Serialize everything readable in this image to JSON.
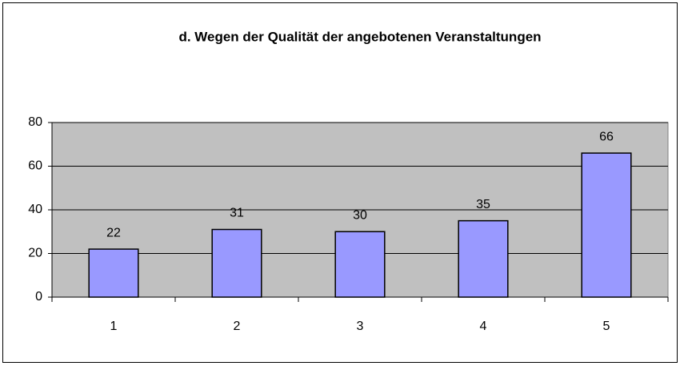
{
  "chart_data": {
    "type": "bar",
    "title": "d. Wegen der Qualität der angebotenen Veranstaltungen",
    "categories": [
      "1",
      "2",
      "3",
      "4",
      "5"
    ],
    "values": [
      22,
      31,
      30,
      35,
      66
    ],
    "color": "#9999ff",
    "plot_background": "#c0c0c0",
    "ylim": [
      0,
      80
    ],
    "yticks": [
      0,
      20,
      40,
      60,
      80
    ],
    "grid": true
  }
}
